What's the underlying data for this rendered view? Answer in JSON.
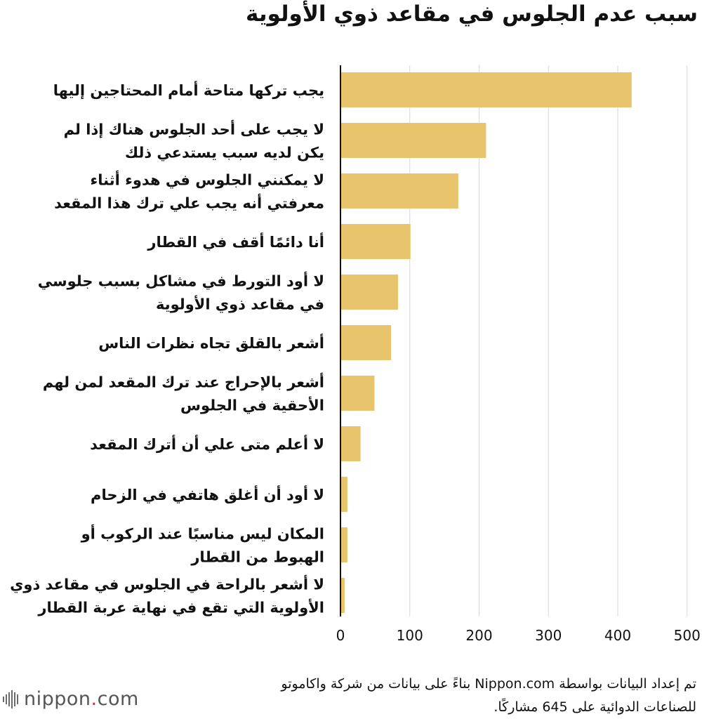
{
  "chart_data": {
    "type": "bar",
    "orientation": "horizontal",
    "title": "سبب عدم الجلوس في مقاعد ذوي الأولوية",
    "xlabel": "",
    "ylabel": "",
    "xlim": [
      0,
      500
    ],
    "xticks": [
      0,
      100,
      200,
      300,
      400,
      500
    ],
    "grid": true,
    "bar_color": "#e8c46c",
    "categories": [
      [
        "يجب تركها متاحة أمام المحتاجين إليها"
      ],
      [
        "لا يجب على أحد الجلوس هناك إذا لم",
        "يكن لديه سبب يستدعي ذلك"
      ],
      [
        "لا يمكنني الجلوس في هدوء أثناء",
        "معرفتي أنه يجب علي ترك هذا المقعد"
      ],
      [
        "أنا دائمًا أقف في القطار"
      ],
      [
        "لا أود التورط في مشاكل بسبب جلوسي",
        "في مقاعد ذوي الأولوية"
      ],
      [
        "أشعر بالقلق تجاه نظرات الناس"
      ],
      [
        "أشعر بالإحراج عند ترك المقعد لمن لهم",
        "الأحقية في الجلوس"
      ],
      [
        "لا أعلم متى علي أن أترك المقعد"
      ],
      [
        "لا أود أن أغلق هاتفي في الزحام"
      ],
      [
        "المكان ليس مناسبًا عند الركوب أو",
        "الهبوط من القطار"
      ],
      [
        "لا أشعر بالراحة في الجلوس في مقاعد ذوي",
        "الأولوية التي تقع في نهاية عربة القطار"
      ]
    ],
    "values": [
      420,
      210,
      170,
      101,
      83,
      73,
      49,
      29,
      10,
      10,
      6
    ]
  },
  "footer": {
    "source_line1": "تم إعداد البيانات بواسطة Nippon.com بناءً على بيانات من شركة واكاموتو",
    "source_line2": "للصناعات الدوائية على 645 مشاركًا.",
    "logo_name": "nippon",
    "logo_dot": ".",
    "logo_domain": "com"
  }
}
